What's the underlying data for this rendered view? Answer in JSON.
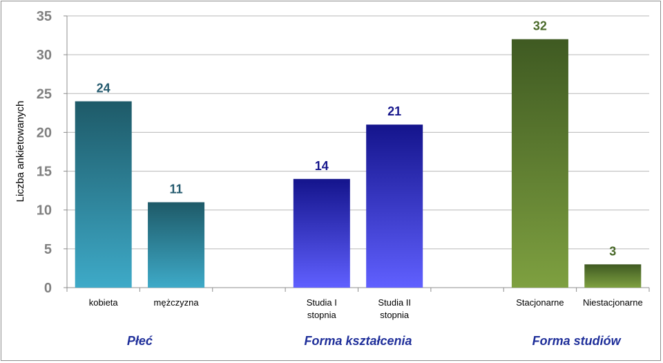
{
  "chart_data": {
    "type": "bar",
    "ylabel": "Liczba ankietowanych",
    "ylim": [
      0,
      35
    ],
    "yticks": [
      "0",
      "5",
      "10",
      "15",
      "20",
      "25",
      "30",
      "35"
    ],
    "grid": true,
    "categories": [
      [
        "kobieta"
      ],
      [
        "mężczyzna"
      ],
      [],
      [
        "Studia I",
        "stopnia"
      ],
      [
        "Studia II",
        "stopnia"
      ],
      [],
      [
        "Stacjonarne"
      ],
      [
        "Niestacjonarne"
      ]
    ],
    "values": [
      24,
      11,
      null,
      14,
      21,
      null,
      32,
      3
    ],
    "group_labels": [
      "Płeć",
      "Forma kształcenia",
      "Forma studiów"
    ],
    "groups": [
      {
        "name": "Płeć",
        "indices": [
          0,
          1
        ],
        "color_top": "#1e5a68",
        "color_bottom": "#3eaac8",
        "label_color": "#245a6e"
      },
      {
        "name": "Forma kształcenia",
        "indices": [
          3,
          4
        ],
        "color_top": "#14148c",
        "color_bottom": "#6060ff",
        "label_color": "#16168c"
      },
      {
        "name": "Forma studiów",
        "indices": [
          6,
          7
        ],
        "color_top": "#3f5a22",
        "color_bottom": "#7ea040",
        "label_color": "#4a6a2a"
      }
    ]
  }
}
